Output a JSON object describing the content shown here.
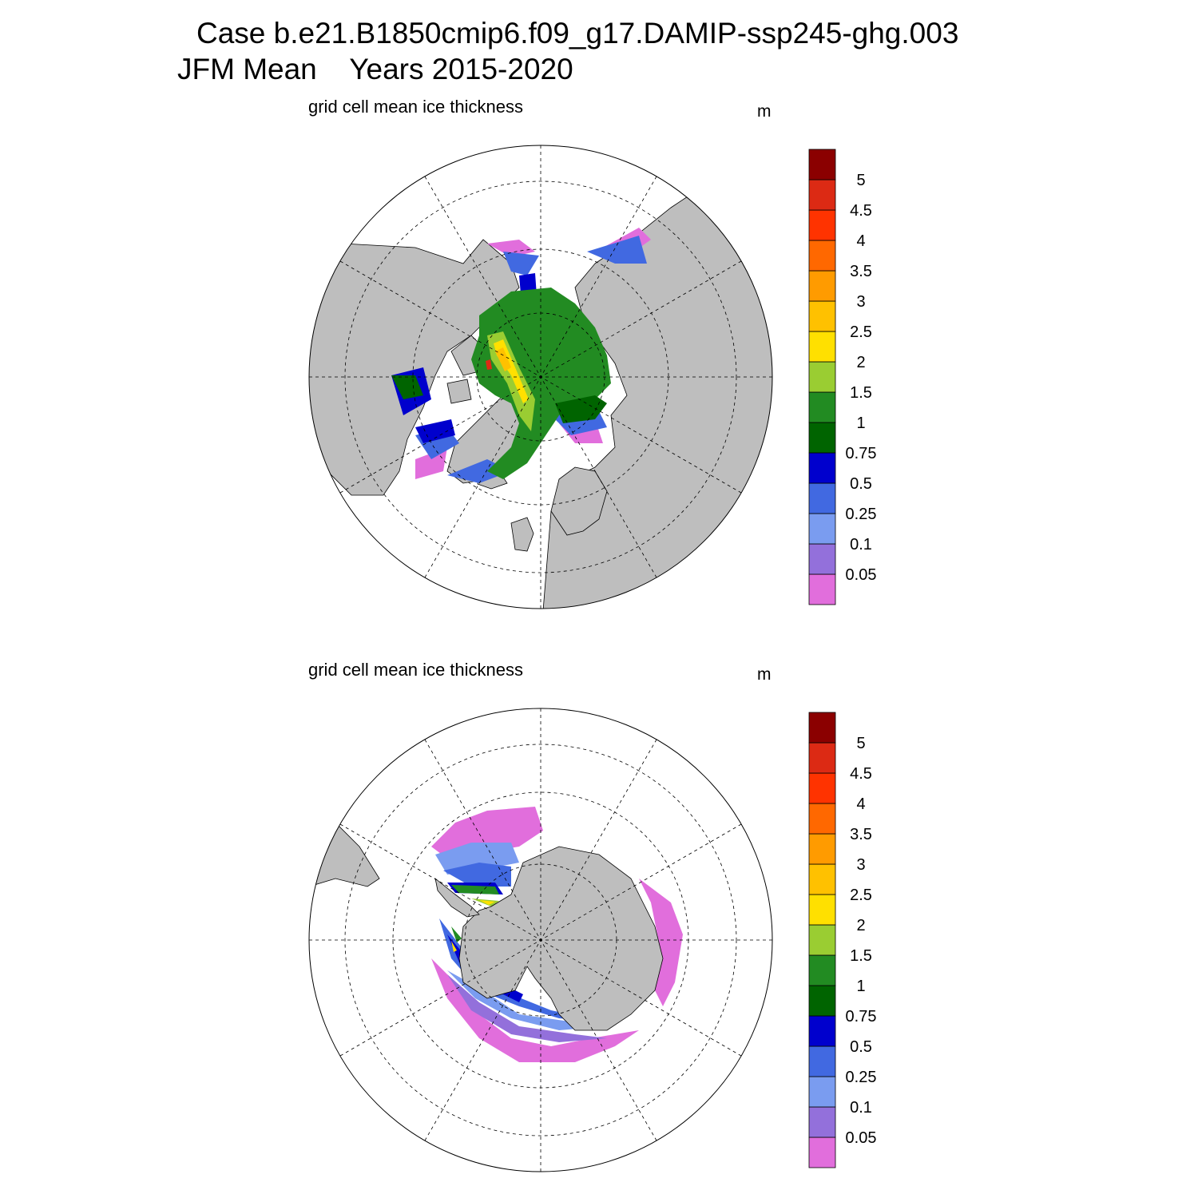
{
  "title_line1": "Case b.e21.B1850cmip6.f09_g17.DAMIP-ssp245-ghg.003",
  "title_line2": "JFM Mean    Years 2015-2020",
  "panels": [
    {
      "id": "north",
      "hemisphere": "Northern Hemisphere (polar stereographic)",
      "variable_label": "grid cell mean ice thickness",
      "units": "m"
    },
    {
      "id": "south",
      "hemisphere": "Southern Hemisphere (polar stereographic)",
      "variable_label": "grid cell mean ice thickness",
      "units": "m"
    }
  ],
  "colorbar": {
    "levels": [
      "0.05",
      "0.1",
      "0.25",
      "0.5",
      "0.75",
      "1",
      "1.5",
      "2",
      "2.5",
      "3",
      "3.5",
      "4",
      "4.5",
      "5"
    ],
    "colors": [
      "#E16EDC",
      "#9370DB",
      "#7A9CF0",
      "#4169E1",
      "#0000CD",
      "#006400",
      "#228B22",
      "#9ACD32",
      "#FFE000",
      "#FFC100",
      "#FF9B00",
      "#FF6800",
      "#FF3300",
      "#DC2A14",
      "#8B0000"
    ]
  },
  "map_colors": {
    "land": "#BEBEBE",
    "ocean": "#FFFFFF",
    "grid": "#000000"
  }
}
